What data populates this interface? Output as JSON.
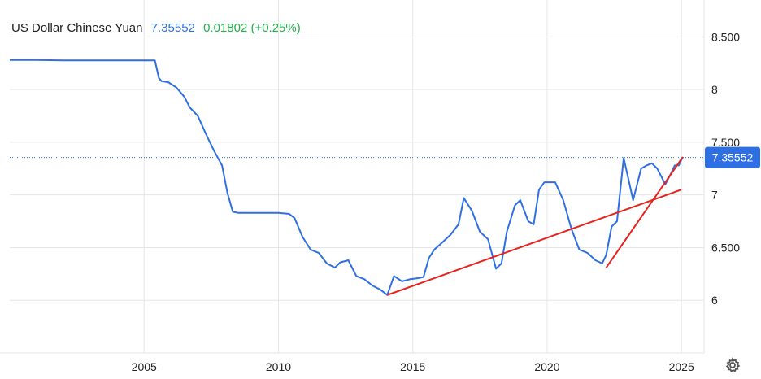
{
  "header": {
    "name": "US Dollar Chinese Yuan",
    "price": "7.35552",
    "change": "0.01802 (+0.25%)"
  },
  "colors": {
    "series": "#2f6fe4",
    "trendline": "#e8231d",
    "change_positive": "#22b04a",
    "grid": "#e6e6e6"
  },
  "icons": {
    "settings": "gear-icon"
  },
  "chart_data": {
    "type": "line",
    "xlim": [
      2000.0,
      2025.6
    ],
    "ylim": [
      5.5,
      8.85
    ],
    "grid": true,
    "y_ticks": [
      {
        "value": 8.5,
        "label": "8.500"
      },
      {
        "value": 8.0,
        "label": "8"
      },
      {
        "value": 7.5,
        "label": "7.500"
      },
      {
        "value": 7.0,
        "label": "7"
      },
      {
        "value": 6.5,
        "label": "6.500"
      },
      {
        "value": 6.0,
        "label": "6"
      }
    ],
    "x_ticks": [
      {
        "value": 2005,
        "label": "2005"
      },
      {
        "value": 2010,
        "label": "2010"
      },
      {
        "value": 2015,
        "label": "2015"
      },
      {
        "value": 2020,
        "label": "2020"
      },
      {
        "value": 2025,
        "label": "2025"
      }
    ],
    "last_value": {
      "value": 7.35552,
      "label": "7.35552"
    },
    "series": [
      {
        "x": [
          2000.0,
          2001.0,
          2002.0,
          2003.0,
          2004.0,
          2005.0,
          2005.4,
          2005.55,
          2005.65,
          2005.9,
          2006.2,
          2006.5,
          2006.7,
          2007.0,
          2007.3,
          2007.6,
          2007.9,
          2008.1,
          2008.3,
          2008.5,
          2008.8,
          2009.2,
          2009.6,
          2010.0,
          2010.4,
          2010.6,
          2010.9,
          2011.2,
          2011.5,
          2011.8,
          2012.1,
          2012.3,
          2012.6,
          2012.9,
          2013.2,
          2013.5,
          2013.8,
          2014.05,
          2014.3,
          2014.6,
          2014.9,
          2015.2,
          2015.4,
          2015.6,
          2015.8,
          2016.1,
          2016.4,
          2016.7,
          2016.9,
          2017.2,
          2017.5,
          2017.8,
          2018.1,
          2018.3,
          2018.5,
          2018.8,
          2019.0,
          2019.3,
          2019.5,
          2019.7,
          2019.9,
          2020.1,
          2020.3,
          2020.6,
          2020.9,
          2021.2,
          2021.5,
          2021.8,
          2022.05,
          2022.2,
          2022.4,
          2022.6,
          2022.85,
          2023.0,
          2023.2,
          2023.5,
          2023.7,
          2023.9,
          2024.1,
          2024.4,
          2024.6,
          2024.75,
          2024.9,
          2025.05
        ],
        "y": [
          8.28,
          8.28,
          8.277,
          8.277,
          8.277,
          8.277,
          8.277,
          8.11,
          8.08,
          8.07,
          8.02,
          7.93,
          7.83,
          7.75,
          7.58,
          7.42,
          7.28,
          7.02,
          6.84,
          6.83,
          6.83,
          6.83,
          6.83,
          6.83,
          6.82,
          6.78,
          6.6,
          6.48,
          6.45,
          6.35,
          6.31,
          6.36,
          6.38,
          6.23,
          6.2,
          6.14,
          6.1,
          6.05,
          6.23,
          6.18,
          6.2,
          6.21,
          6.22,
          6.4,
          6.48,
          6.55,
          6.62,
          6.72,
          6.97,
          6.85,
          6.65,
          6.58,
          6.3,
          6.35,
          6.65,
          6.9,
          6.95,
          6.75,
          6.72,
          7.05,
          7.12,
          7.12,
          7.12,
          6.95,
          6.68,
          6.48,
          6.45,
          6.38,
          6.35,
          6.43,
          6.7,
          6.75,
          7.35,
          7.18,
          6.95,
          7.25,
          7.28,
          7.3,
          7.25,
          7.1,
          7.2,
          7.28,
          7.28,
          7.36
        ]
      }
    ],
    "trendlines": [
      {
        "x": [
          2014.05,
          2025.0
        ],
        "y": [
          6.05,
          7.05
        ]
      },
      {
        "x": [
          2022.2,
          2025.05
        ],
        "y": [
          6.31,
          7.36
        ]
      }
    ]
  }
}
